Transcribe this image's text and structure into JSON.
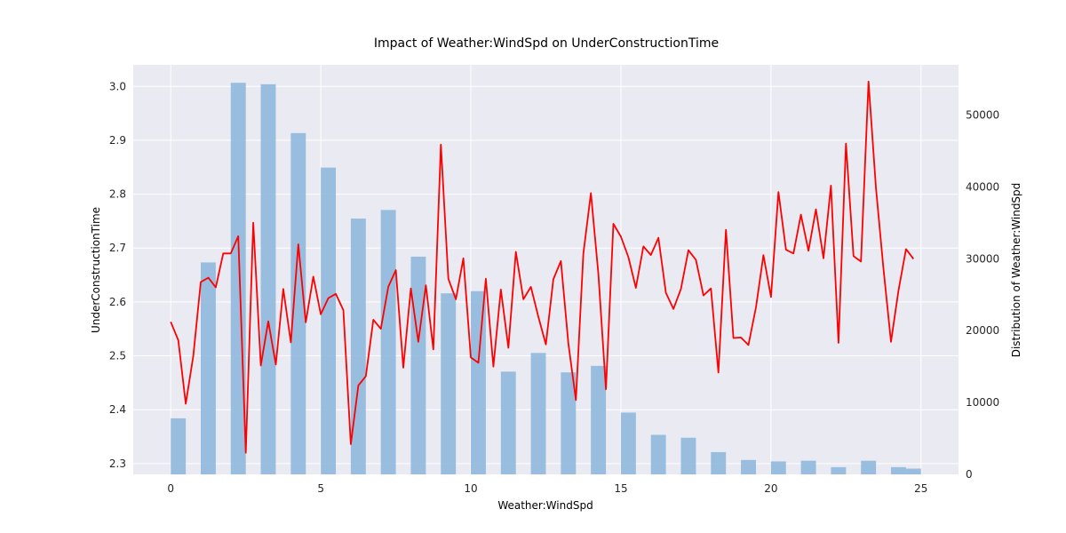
{
  "chart_data": {
    "type": "bar+line",
    "title": "Impact of Weather:WindSpd on UnderConstructionTime",
    "xlabel": "Weather:WindSpd",
    "ylabel_left": "UnderConstructionTime",
    "ylabel_right": "Distribution of Weather:WindSpd",
    "xlim": [
      -1.25,
      26.25
    ],
    "ylim_left": [
      2.28,
      3.04
    ],
    "ylim_right": [
      0,
      57000
    ],
    "x_ticks": [
      0,
      5,
      10,
      15,
      20,
      25
    ],
    "y_left_ticks": [
      2.3,
      2.4,
      2.5,
      2.6,
      2.7,
      2.8,
      2.9,
      3.0
    ],
    "y_right_ticks": [
      0,
      10000,
      20000,
      30000,
      40000,
      50000
    ],
    "grid": true,
    "colors": {
      "background": "#eaeaf2",
      "grid": "#ffffff",
      "bars": "#8fb8dc",
      "line": "#ff0000"
    },
    "distribution": {
      "name": "Distribution of Weather:WindSpd",
      "bar_width": 0.5,
      "x": [
        0.25,
        1.25,
        2.25,
        3.25,
        4.25,
        5.25,
        6.25,
        7.25,
        8.25,
        9.25,
        10.25,
        11.25,
        12.25,
        13.25,
        14.25,
        15.25,
        16.25,
        17.25,
        18.25,
        19.25,
        20.25,
        21.25,
        22.25,
        23.25,
        24.25,
        24.75
      ],
      "values": [
        7800,
        29500,
        54500,
        54300,
        47500,
        42700,
        35600,
        36800,
        30300,
        25200,
        25500,
        14300,
        16900,
        14200,
        15100,
        8600,
        5500,
        5100,
        3100,
        2000,
        1800,
        1900,
        1000,
        1900,
        1000,
        800
      ]
    },
    "line": {
      "name": "UnderConstructionTime",
      "x": [
        0,
        0.25,
        0.5,
        0.75,
        1,
        1.25,
        1.5,
        1.75,
        2,
        2.25,
        2.5,
        2.75,
        3,
        3.25,
        3.5,
        3.75,
        4,
        4.25,
        4.5,
        4.75,
        5,
        5.25,
        5.5,
        5.75,
        6,
        6.25,
        6.5,
        6.75,
        7,
        7.25,
        7.5,
        7.75,
        8,
        8.25,
        8.5,
        8.75,
        9,
        9.25,
        9.5,
        9.75,
        10,
        10.25,
        10.5,
        10.75,
        11,
        11.25,
        11.5,
        11.75,
        12,
        12.25,
        12.5,
        12.75,
        13,
        13.25,
        13.5,
        13.75,
        14,
        14.25,
        14.5,
        14.75,
        15,
        15.25,
        15.5,
        15.75,
        16,
        16.25,
        16.5,
        16.75,
        17,
        17.25,
        17.5,
        17.75,
        18,
        18.25,
        18.5,
        18.75,
        19,
        19.25,
        19.5,
        19.75,
        20,
        20.25,
        20.5,
        20.75,
        21,
        21.25,
        21.5,
        21.75,
        22,
        22.25,
        22.5,
        22.75,
        23,
        23.25,
        23.5,
        23.75,
        24,
        24.25,
        24.5,
        24.75
      ],
      "y": [
        2.563,
        2.529,
        2.411,
        2.5,
        2.637,
        2.645,
        2.627,
        2.69,
        2.69,
        2.722,
        2.32,
        2.747,
        2.482,
        2.564,
        2.484,
        2.624,
        2.525,
        2.707,
        2.562,
        2.647,
        2.577,
        2.607,
        2.615,
        2.585,
        2.336,
        2.445,
        2.462,
        2.567,
        2.55,
        2.628,
        2.659,
        2.478,
        2.625,
        2.526,
        2.631,
        2.512,
        2.892,
        2.643,
        2.605,
        2.681,
        2.497,
        2.487,
        2.643,
        2.48,
        2.623,
        2.515,
        2.693,
        2.605,
        2.628,
        2.572,
        2.521,
        2.642,
        2.676,
        2.523,
        2.418,
        2.69,
        2.802,
        2.652,
        2.438,
        2.745,
        2.721,
        2.683,
        2.626,
        2.703,
        2.687,
        2.719,
        2.617,
        2.587,
        2.624,
        2.696,
        2.678,
        2.612,
        2.625,
        2.469,
        2.734,
        2.533,
        2.534,
        2.52,
        2.59,
        2.687,
        2.609,
        2.804,
        2.697,
        2.69,
        2.762,
        2.695,
        2.772,
        2.681,
        2.816,
        2.524,
        2.894,
        2.685,
        2.675,
        3.009,
        2.811,
        2.662,
        2.526,
        2.621,
        2.698,
        2.68
      ]
    }
  }
}
